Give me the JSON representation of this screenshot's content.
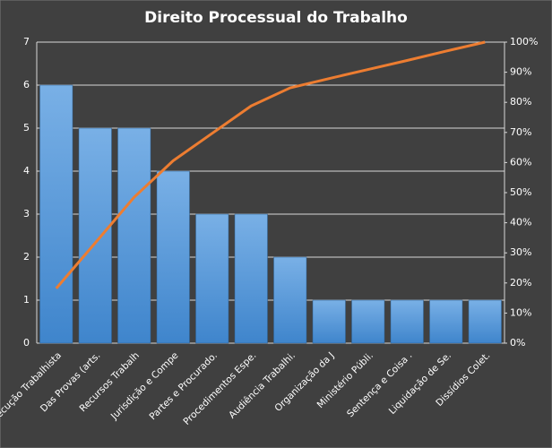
{
  "chart_data": {
    "type": "pareto",
    "title": "Direito  Processual  do Trabalho",
    "categories": [
      "Execução Trabalhista",
      "Das Provas (arts.",
      "Recursos Trabalh",
      "Jurisdição e Compe",
      "Partes e Procurado.",
      "Procedimentos Espe.",
      "Audiência Trabalhi.",
      "Organização da J",
      "Ministério Públi.",
      "Sentença e Coisa .",
      "Liquidação de Se.",
      "Dissídios Colet."
    ],
    "series": [
      {
        "type": "bar",
        "color": "#5b9bd5",
        "values": [
          6,
          5,
          5,
          4,
          3,
          3,
          2,
          1,
          1,
          1,
          1,
          1
        ]
      },
      {
        "type": "line",
        "axis": "y2",
        "color": "#ed7d31",
        "values": [
          18.2,
          33.3,
          48.5,
          60.6,
          69.7,
          78.8,
          84.8,
          87.9,
          90.9,
          93.9,
          97.0,
          100
        ]
      }
    ],
    "ylim": [
      0,
      7
    ],
    "yticks": [
      0,
      1,
      2,
      3,
      4,
      5,
      6,
      7
    ],
    "y2lim": [
      0,
      100
    ],
    "y2ticks": [
      {
        "value": 0,
        "label": "0%"
      },
      {
        "value": 10,
        "label": "10%"
      },
      {
        "value": 20,
        "label": "20%"
      },
      {
        "value": 30,
        "label": "30%"
      },
      {
        "value": 40,
        "label": "40%"
      },
      {
        "value": 50,
        "label": "50%"
      },
      {
        "value": 60,
        "label": "60%"
      },
      {
        "value": 70,
        "label": "70%"
      },
      {
        "value": 80,
        "label": "80%"
      },
      {
        "value": 90,
        "label": "90%"
      },
      {
        "value": 100,
        "label": "100%"
      }
    ],
    "grid": true
  }
}
